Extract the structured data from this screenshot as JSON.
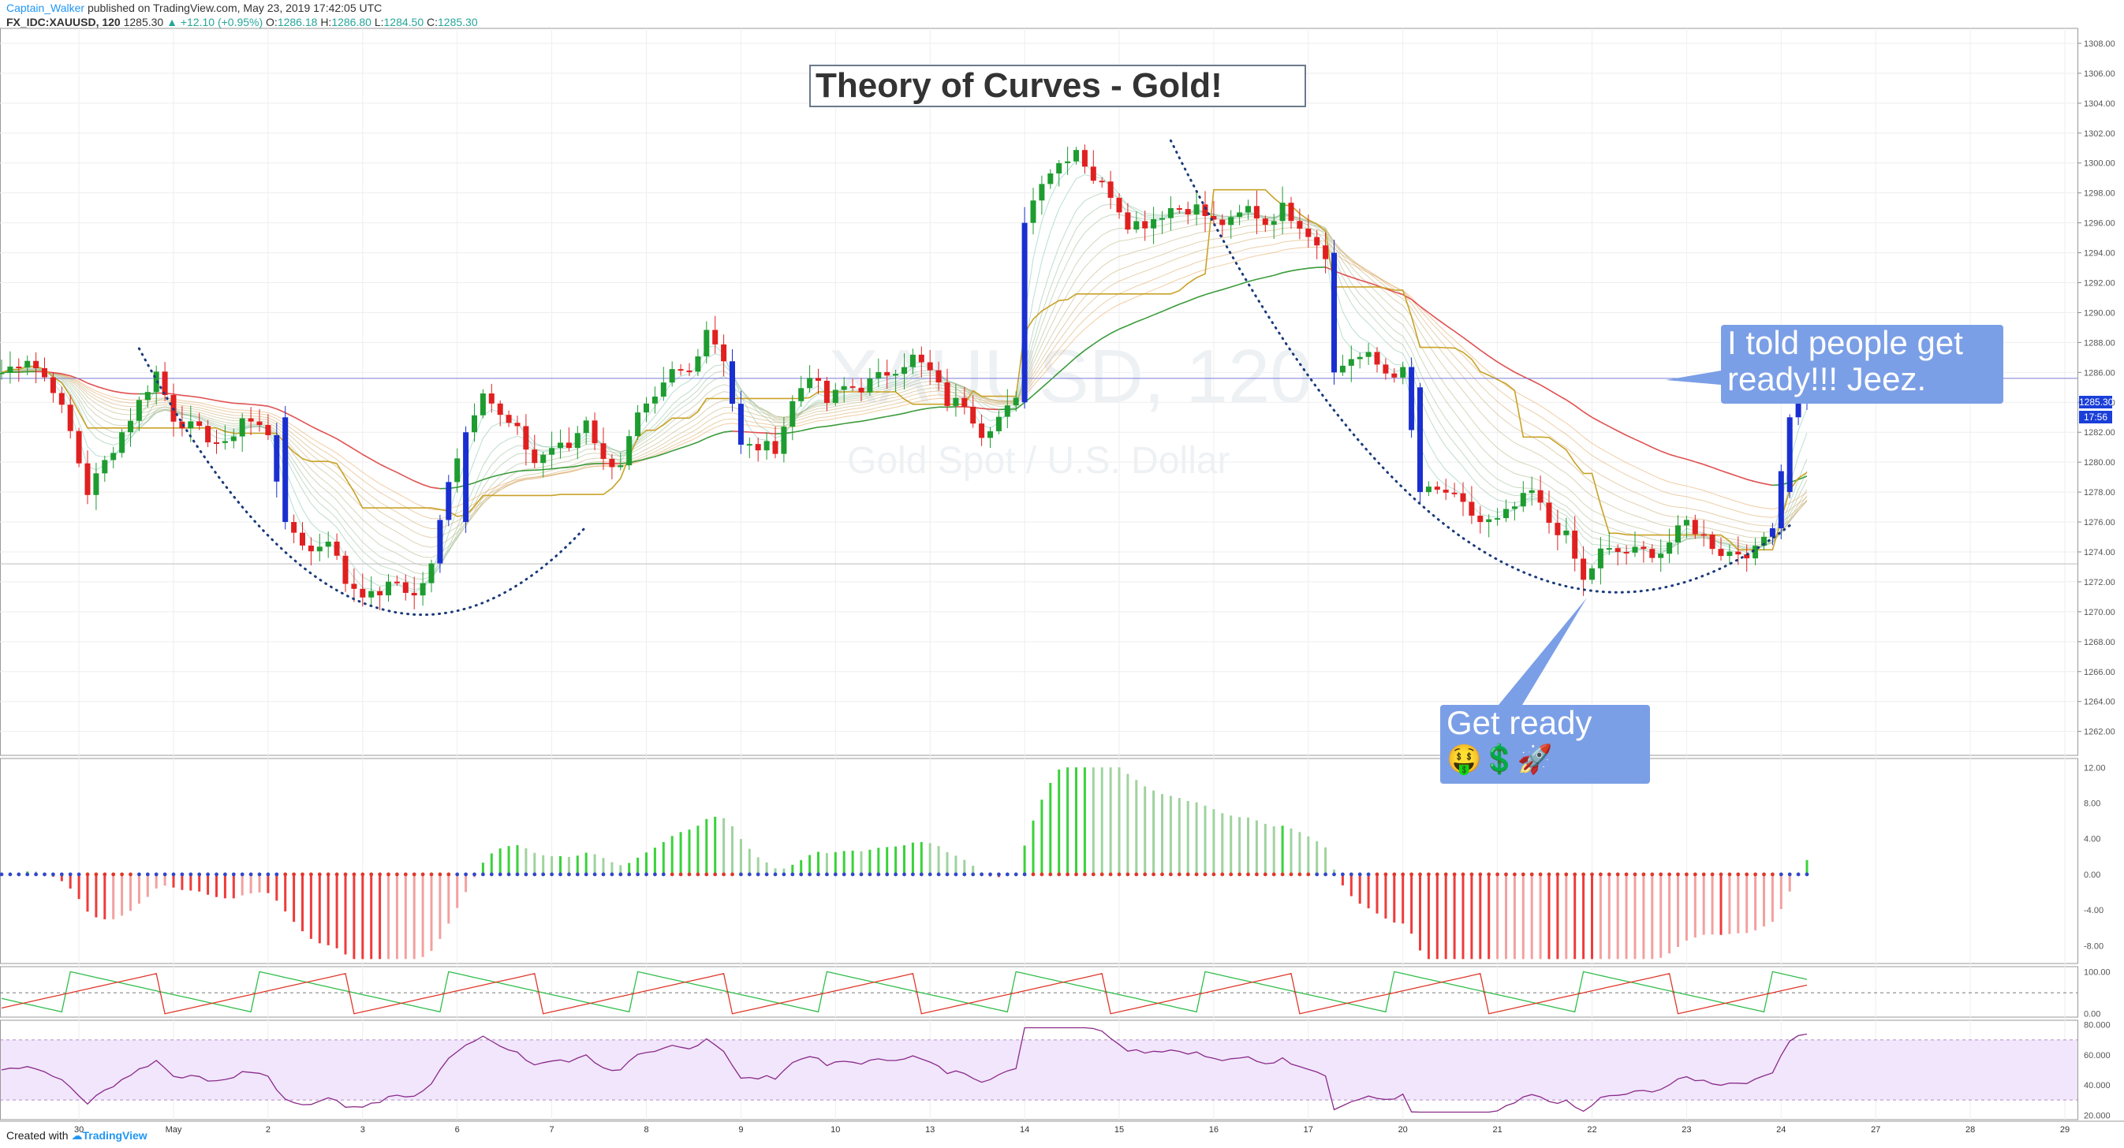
{
  "header": {
    "author": "Captain_Walker",
    "published_text": "published on TradingView.com, May 23, 2019 17:42:05 UTC",
    "symbol": "FX_IDC:XAUUSD, 120",
    "last": "1285.30",
    "change": "▲ +12.10 (+0.95%)",
    "o_label": "O:",
    "o_value": "1286.18",
    "h_label": "H:",
    "h_value": "1286.80",
    "l_label": "L:",
    "l_value": "1284.50",
    "c_label": "C:",
    "c_value": "1285.30"
  },
  "footer": {
    "created_with": "Created with",
    "brand": "TradingView"
  },
  "watermark": {
    "symbol": "XAUUSD, 120",
    "description": "Gold Spot / U.S. Dollar"
  },
  "annotations": {
    "title": "Theory of Curves - Gold!",
    "callout_top_line1": "I told people get",
    "callout_top_line2": "ready!!! Jeez.",
    "callout_bottom_line1": "Get ready",
    "callout_bottom_emoji": "🤑💲🚀"
  },
  "price_tags": {
    "last_price": "1285.30",
    "countdown": "17:56"
  },
  "colors": {
    "up": "#1e9c30",
    "down": "#e02020",
    "wave": "#1a2fd0",
    "accent": "#2962ff",
    "hist_up": "#3ad23a",
    "hist_down": "#ef3b3b",
    "stoch_k": "#2fbd4a",
    "stoch_d": "#e0372a",
    "rsi": "#8a2a8a",
    "rsi_band": "#f1e6fb",
    "donchian": "#c9a227",
    "curve_dots": "#1a3a7a"
  },
  "chart_data": {
    "type": "candlestick",
    "symbol": "FX_IDC:XAUUSD",
    "interval": "120",
    "price_axis_ticks": [
      1308.0,
      1306.0,
      1304.0,
      1302.0,
      1300.0,
      1298.0,
      1296.0,
      1294.0,
      1292.0,
      1290.0,
      1288.0,
      1286.0,
      1284.0,
      1282.0,
      1280.0,
      1278.0,
      1276.0,
      1274.0,
      1272.0,
      1270.0,
      1268.0,
      1266.0,
      1264.0,
      1262.0
    ],
    "price_range": [
      1260.4,
      1309.0
    ],
    "time_labels": [
      {
        "label": "29",
        "bar": -2
      },
      {
        "label": "30",
        "bar": 9
      },
      {
        "label": "May",
        "bar": 20
      },
      {
        "label": "2",
        "bar": 31
      },
      {
        "label": "3",
        "bar": 42
      },
      {
        "label": "6",
        "bar": 53
      },
      {
        "label": "7",
        "bar": 64
      },
      {
        "label": "8",
        "bar": 75
      },
      {
        "label": "9",
        "bar": 86
      },
      {
        "label": "10",
        "bar": 97
      },
      {
        "label": "13",
        "bar": 108
      },
      {
        "label": "14",
        "bar": 119
      },
      {
        "label": "15",
        "bar": 130
      },
      {
        "label": "16",
        "bar": 141
      },
      {
        "label": "17",
        "bar": 152
      },
      {
        "label": "20",
        "bar": 163
      },
      {
        "label": "21",
        "bar": 174
      },
      {
        "label": "22",
        "bar": 185
      },
      {
        "label": "23",
        "bar": 196
      },
      {
        "label": "24",
        "bar": 207
      },
      {
        "label": "27",
        "bar": 218
      },
      {
        "label": "28",
        "bar": 229
      },
      {
        "label": "29",
        "bar": 240
      },
      {
        "label": "30",
        "bar": 251
      }
    ],
    "close_anchors": [
      [
        0,
        1286
      ],
      [
        3,
        1287
      ],
      [
        6,
        1285
      ],
      [
        8,
        1282
      ],
      [
        10,
        1278
      ],
      [
        13,
        1281
      ],
      [
        16,
        1284
      ],
      [
        18,
        1286
      ],
      [
        20,
        1283
      ],
      [
        23,
        1282
      ],
      [
        26,
        1281
      ],
      [
        28,
        1283
      ],
      [
        31,
        1282
      ],
      [
        33,
        1276
      ],
      [
        36,
        1274
      ],
      [
        38,
        1275
      ],
      [
        40,
        1272
      ],
      [
        43,
        1271
      ],
      [
        46,
        1272
      ],
      [
        48,
        1271
      ],
      [
        50,
        1273
      ],
      [
        52,
        1279
      ],
      [
        54,
        1282
      ],
      [
        56,
        1285
      ],
      [
        58,
        1283
      ],
      [
        60,
        1282
      ],
      [
        62,
        1280
      ],
      [
        64,
        1281
      ],
      [
        66,
        1281
      ],
      [
        68,
        1283
      ],
      [
        70,
        1280
      ],
      [
        72,
        1280
      ],
      [
        74,
        1283
      ],
      [
        76,
        1284
      ],
      [
        78,
        1286
      ],
      [
        80,
        1286
      ],
      [
        82,
        1289
      ],
      [
        84,
        1287
      ],
      [
        86,
        1281
      ],
      [
        88,
        1281
      ],
      [
        90,
        1281
      ],
      [
        92,
        1284
      ],
      [
        94,
        1286
      ],
      [
        96,
        1284
      ],
      [
        98,
        1285
      ],
      [
        100,
        1285
      ],
      [
        103,
        1286
      ],
      [
        106,
        1287
      ],
      [
        108,
        1286
      ],
      [
        110,
        1284
      ],
      [
        112,
        1284
      ],
      [
        114,
        1282
      ],
      [
        116,
        1283
      ],
      [
        118,
        1284
      ],
      [
        119,
        1296
      ],
      [
        121,
        1299
      ],
      [
        123,
        1300
      ],
      [
        125,
        1301
      ],
      [
        127,
        1299
      ],
      [
        129,
        1298
      ],
      [
        131,
        1296
      ],
      [
        133,
        1296
      ],
      [
        136,
        1297
      ],
      [
        139,
        1297
      ],
      [
        141,
        1296
      ],
      [
        143,
        1296
      ],
      [
        145,
        1297
      ],
      [
        147,
        1296
      ],
      [
        149,
        1297
      ],
      [
        151,
        1296
      ],
      [
        154,
        1294
      ],
      [
        155,
        1286
      ],
      [
        157,
        1287
      ],
      [
        159,
        1287
      ],
      [
        161,
        1286
      ],
      [
        163,
        1286
      ],
      [
        165,
        1278
      ],
      [
        168,
        1278
      ],
      [
        170,
        1277
      ],
      [
        172,
        1276
      ],
      [
        174,
        1276
      ],
      [
        176,
        1277
      ],
      [
        178,
        1278
      ],
      [
        180,
        1276
      ],
      [
        182,
        1275
      ],
      [
        184,
        1272
      ],
      [
        186,
        1274
      ],
      [
        188,
        1274
      ],
      [
        190,
        1274
      ],
      [
        193,
        1274
      ],
      [
        196,
        1276
      ],
      [
        198,
        1275
      ],
      [
        200,
        1274
      ],
      [
        202,
        1274
      ],
      [
        204,
        1274
      ],
      [
        206,
        1276
      ],
      [
        208,
        1283
      ],
      [
        210,
        1285.3
      ]
    ],
    "events": [
      {
        "bar": 33,
        "type": "drop",
        "from": 1283,
        "to": 1276
      },
      {
        "bar": 54,
        "type": "jump",
        "from": 1276,
        "to": 1282
      },
      {
        "bar": 119,
        "type": "jump",
        "from": 1284,
        "to": 1296
      },
      {
        "bar": 155,
        "type": "drop",
        "from": 1294,
        "to": 1286
      },
      {
        "bar": 165,
        "type": "drop",
        "from": 1285,
        "to": 1278
      },
      {
        "bar": 208,
        "type": "jump",
        "from": 1278,
        "to": 1283
      }
    ],
    "horizontal_lines": [
      {
        "price": 1285.6,
        "color": "#7b7bd8"
      },
      {
        "price": 1273.2,
        "color": "#bdbdbd"
      }
    ],
    "curves": [
      {
        "from_bar": 16,
        "to_bar": 68,
        "low_bar": 49,
        "low_price": 1269.8,
        "high_price": 1287.6
      },
      {
        "from_bar": 136,
        "to_bar": 208,
        "low_bar": 188,
        "low_price": 1271.3,
        "high_price": 1301.5
      }
    ],
    "histogram": {
      "ticks": [
        12.0,
        8.0,
        4.0,
        0.0,
        -4.0,
        -8.0
      ],
      "range": [
        -10,
        13
      ]
    },
    "stochastic": {
      "ticks": [
        100.0,
        0.0
      ],
      "range": [
        -8,
        112
      ]
    },
    "rsi": {
      "ticks": [
        80.0,
        60.0,
        40.0,
        20.0
      ],
      "range": [
        17,
        83
      ],
      "band": [
        30,
        70
      ]
    }
  }
}
